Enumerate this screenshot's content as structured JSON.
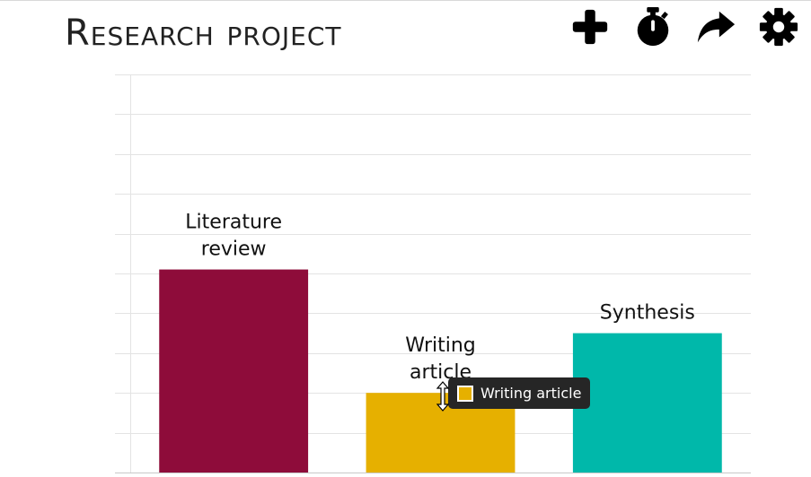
{
  "header": {
    "title": "Research project"
  },
  "toolbar": {
    "buttons": [
      {
        "name": "add-button",
        "icon": "plus-icon"
      },
      {
        "name": "timer-button",
        "icon": "stopwatch-icon"
      },
      {
        "name": "share-button",
        "icon": "share-arrow-icon"
      },
      {
        "name": "settings-button",
        "icon": "gear-icon"
      }
    ]
  },
  "chart_data": {
    "type": "bar",
    "categories": [
      "Literature review",
      "Writing article",
      "Synthesis"
    ],
    "values": [
      5.1,
      2.0,
      3.5
    ],
    "colors": [
      "#8e0c3a",
      "#e6b000",
      "#00b8aa"
    ],
    "ylim": [
      0,
      10
    ],
    "grid": true
  },
  "tooltip": {
    "label": "Writing article",
    "color": "#e6b000"
  }
}
